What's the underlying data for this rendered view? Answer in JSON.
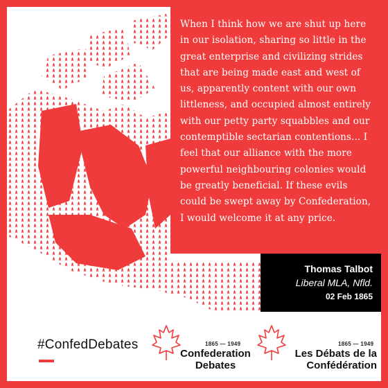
{
  "quote": {
    "text": "When I think how we are shut up here in our isolation, sharing so little in the great enterprise and civilizing strides that are being made east and west of us, apparently content with our own littleness, and occupied almost entirely with our petty party squabbles and our contemptible sectarian contentions... I feel that our alliance with the more powerful neighbouring colonies would be greatly beneficial. If these evils could be swept away by Confederation, I would welcome it at any price."
  },
  "attribution": {
    "name": "Thomas Talbot",
    "role": "Liberal MLA, Nfld.",
    "date": "02 Feb 1865"
  },
  "hashtag": "#ConfedDebates",
  "logos": {
    "english": {
      "years": "1865 — 1949",
      "title_line1": "Confederation",
      "title_line2": "Debates"
    },
    "french": {
      "years": "1865 — 1949",
      "title_line1": "Les Débats de la",
      "title_line2": "Confédération"
    }
  },
  "colors": {
    "accent": "#ef3b3b",
    "black": "#000000",
    "white": "#ffffff"
  },
  "icons": {
    "map": "canada-map-icon",
    "logo": "maple-leaf-outline-icon"
  }
}
